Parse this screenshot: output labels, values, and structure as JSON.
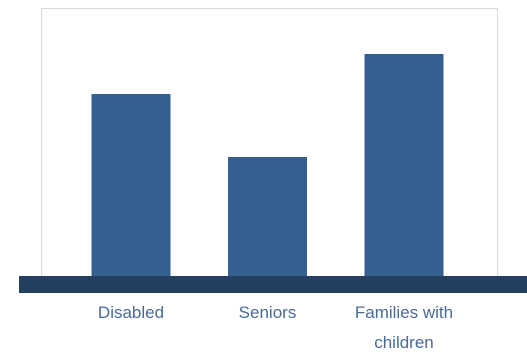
{
  "chart_data": {
    "type": "bar",
    "categories": [
      "Disabled",
      "Seniors",
      "Families with children"
    ],
    "category_lines": [
      [
        "Disabled"
      ],
      [
        "Seniors"
      ],
      [
        "Families with",
        "children"
      ]
    ],
    "values": [
      182,
      119,
      222
    ],
    "title": "",
    "xlabel": "",
    "ylabel": "",
    "ylim": [
      0,
      268
    ],
    "grid": false,
    "legend": "none",
    "colors": {
      "bar": "#365f91",
      "baseline": "#243f60",
      "plot_border": "#d9d9d9",
      "label": "#4a6b96"
    }
  }
}
